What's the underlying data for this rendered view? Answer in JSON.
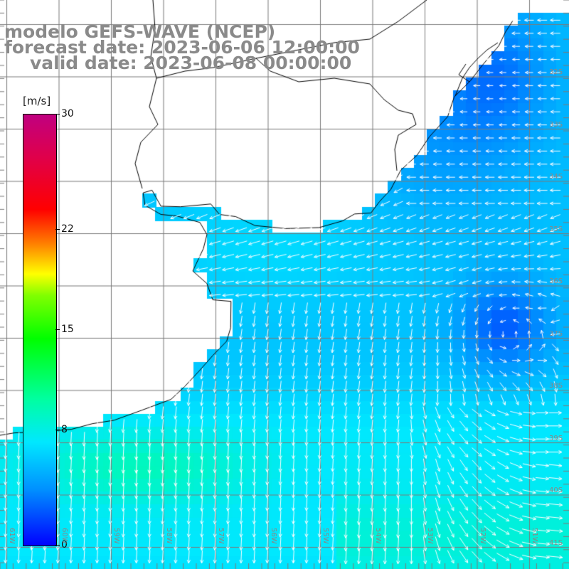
{
  "titles": {
    "model": "modelo GEFS-WAVE (NCEP)",
    "forecast": "forecast date: 2023-06-06 12:00:00",
    "valid": "valid date: 2023-06-08 00:00:00"
  },
  "colorbar": {
    "unit": "[m/s]",
    "ticks": [
      "30",
      "22",
      "15",
      "8",
      "0"
    ],
    "tick_values": [
      30,
      22,
      15,
      8,
      0
    ],
    "range": [
      0,
      30
    ],
    "colors": [
      "#0000ff",
      "#0090ff",
      "#00e8ff",
      "#00ffa0",
      "#00ff00",
      "#80ff00",
      "#ffff00",
      "#ff8000",
      "#ff0000",
      "#e0004a",
      "#c00080"
    ]
  },
  "axes": {
    "lon_labels": [
      "61W",
      "60W",
      "59W",
      "58W",
      "57W",
      "56W",
      "55W",
      "54W",
      "53W",
      "52W",
      "51W"
    ],
    "lat_labels": [
      "32S",
      "33S",
      "34S",
      "35S",
      "36S",
      "37S",
      "38S",
      "39S",
      "40S",
      "41S"
    ]
  },
  "colors": {
    "land": "#ffffff",
    "grid": "#7a7a7a",
    "coast": "#000000",
    "arrow": "#ffffff",
    "title": "#8a8a8a"
  }
}
